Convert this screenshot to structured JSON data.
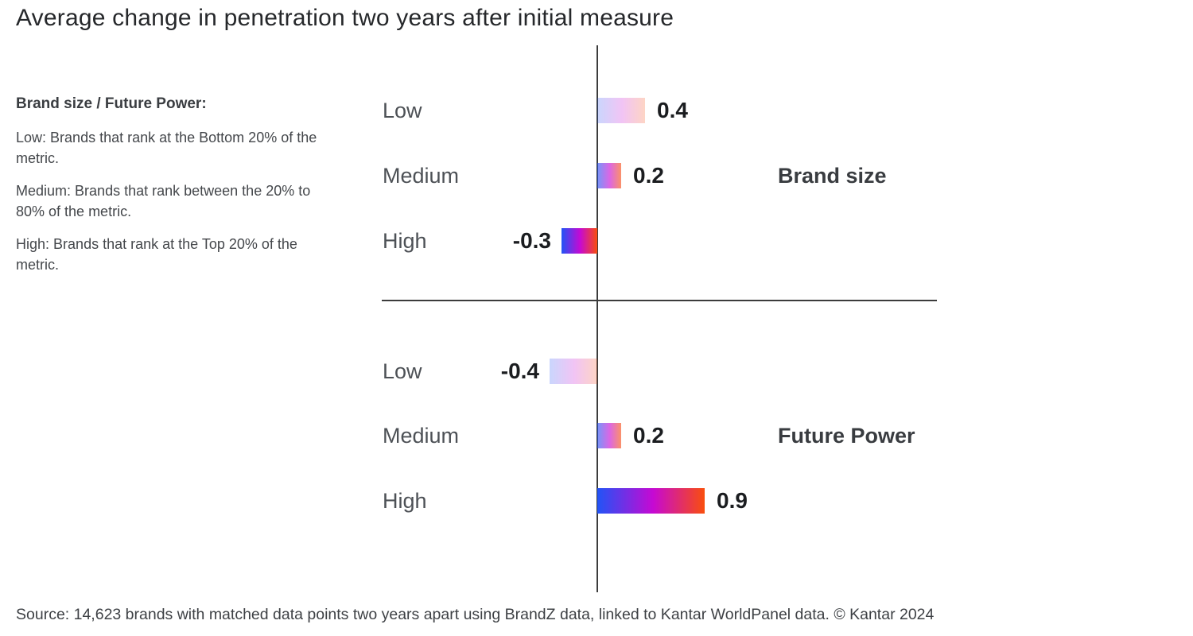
{
  "title": "Average change in penetration two years after initial measure",
  "legend": {
    "heading": "Brand size / Future Power:",
    "items": [
      {
        "term": "Low:",
        "description": "Brands that rank at the Bottom 20% of the metric."
      },
      {
        "term": "Medium:",
        "description": "Brands that rank between the 20% to 80% of the metric."
      },
      {
        "term": "High:",
        "description": "Brands that rank at the Top 20% of the metric."
      }
    ]
  },
  "footer": "Source: 14,623 brands with matched data points two years apart using BrandZ data, linked to Kantar WorldPanel data. © Kantar 2024",
  "colors": {
    "gradient_start": "#2154F6",
    "gradient_mid": "#C609D3",
    "gradient_end": "#F94E0D",
    "axis": "#3C3C3C",
    "title_text": "#26282B",
    "row_label_text": "#4D5156",
    "value_text": "#1B1D20"
  },
  "chart_data": {
    "type": "bar",
    "orientation": "horizontal",
    "title": "Average change in penetration two years after initial measure",
    "xlabel": "",
    "ylabel": "",
    "xlim": [
      -0.5,
      0.95
    ],
    "grid": false,
    "legend_position": "none",
    "baseline": 0,
    "bar_intensity_note": "bar color saturation encodes category: Low pale, Medium medium, High full",
    "groups": [
      {
        "name": "Brand size",
        "categories": [
          "Low",
          "Medium",
          "High"
        ],
        "values": [
          0.4,
          0.2,
          -0.3
        ]
      },
      {
        "name": "Future Power",
        "categories": [
          "Low",
          "Medium",
          "High"
        ],
        "values": [
          -0.4,
          0.2,
          0.9
        ]
      }
    ],
    "value_labels": [
      [
        "0.4",
        "0.2",
        "-0.3"
      ],
      [
        "-0.4",
        "0.2",
        "0.9"
      ]
    ]
  }
}
